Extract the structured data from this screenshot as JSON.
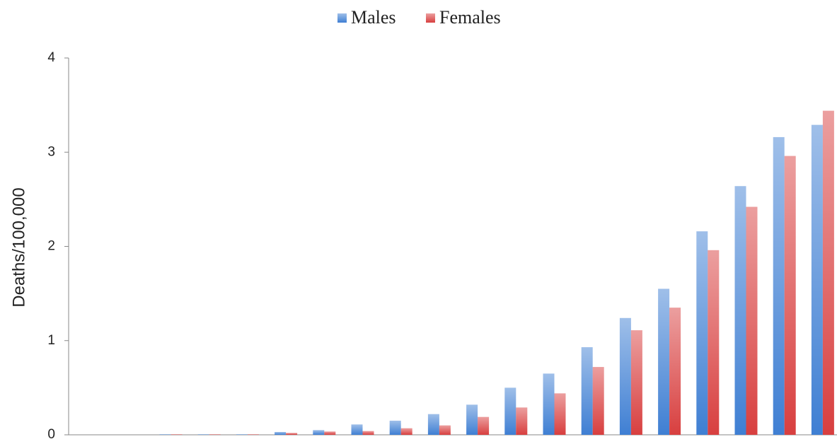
{
  "chart_data": {
    "type": "bar",
    "y_label": "Deaths/100,000",
    "categories": [
      null,
      null,
      null,
      null,
      null,
      null,
      null,
      null,
      null,
      null,
      null,
      null,
      null,
      null,
      null,
      null,
      null,
      null,
      null,
      null
    ],
    "series": [
      {
        "name": "Males",
        "color": "#3f7fd3",
        "values": [
          0,
          0,
          0.005,
          0.005,
          0.005,
          0.03,
          0.05,
          0.11,
          0.15,
          0.22,
          0.32,
          0.5,
          0.65,
          0.93,
          1.24,
          1.55,
          2.16,
          2.64,
          3.16,
          3.29
        ]
      },
      {
        "name": "Females",
        "color": "#d83f3f",
        "values": [
          0,
          0,
          0.005,
          0.005,
          0.005,
          0.02,
          0.035,
          0.04,
          0.07,
          0.1,
          0.19,
          0.29,
          0.44,
          0.72,
          1.11,
          1.35,
          1.96,
          2.42,
          2.96,
          3.44
        ]
      }
    ],
    "ylim": [
      0,
      4
    ],
    "yticks": [
      0,
      1,
      2,
      3,
      4
    ],
    "grid": false,
    "legend": "top"
  }
}
